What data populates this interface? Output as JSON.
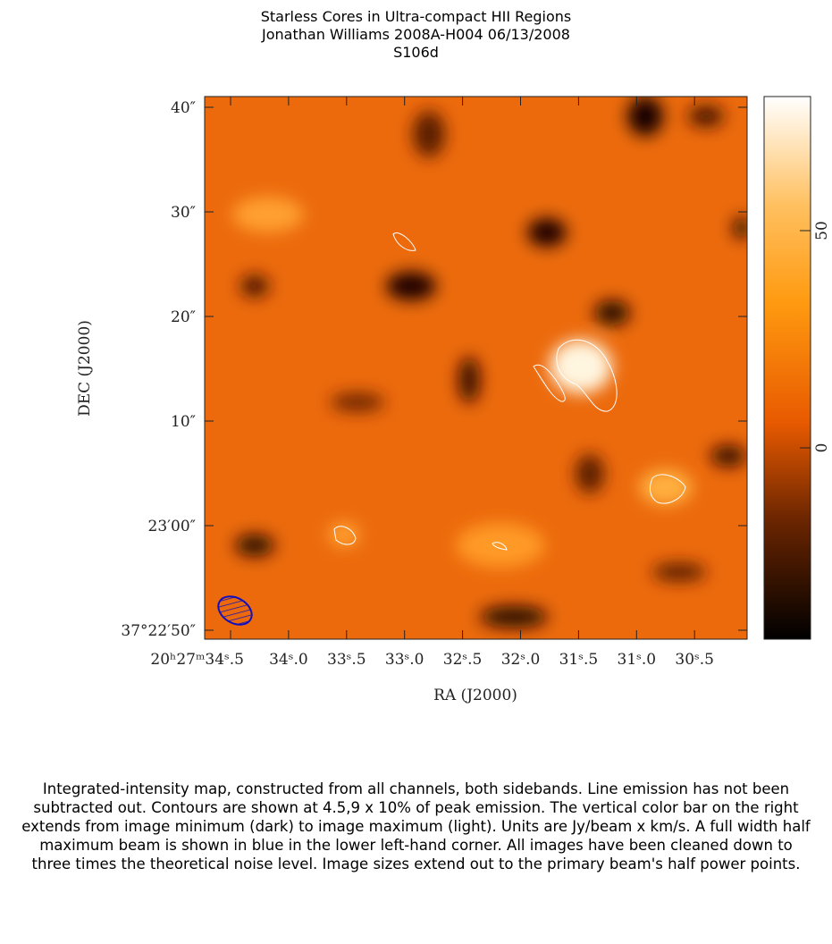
{
  "figure": {
    "title_lines": [
      "Starless Cores in Ultra-compact HII Regions",
      "Jonathan Williams   2008A-H004   06/13/2008",
      "S106d"
    ],
    "y_axis_label": "DEC  (J2000)",
    "x_axis_label": "RA  (J2000)",
    "y_ticks": [
      "40″",
      "30″",
      "20″",
      "10″",
      "23′00″",
      "37°22′50″"
    ],
    "x_ticks": [
      "20ʰ27ᵐ34ˢ.5",
      "34ˢ.0",
      "33ˢ.5",
      "33ˢ.0",
      "32ˢ.5",
      "32ˢ.0",
      "31ˢ.5",
      "31ˢ.0",
      "30ˢ.5"
    ],
    "colorbar_ticks": [
      "50",
      "0"
    ],
    "caption": "Integrated-intensity map, constructed from all channels, both sidebands.  Line emission has not been subtracted out.  Contours are shown at 4.5,9 x 10% of peak emission.  The vertical color bar on the right extends from image minimum (dark) to image maximum (light).  Units are Jy/beam x km/s.  A full width half maximum beam is shown in blue in the lower left-hand corner.  All images have been cleaned down to three times the theoretical noise level.  Image sizes extend out to the primary beam's half power points."
  }
}
